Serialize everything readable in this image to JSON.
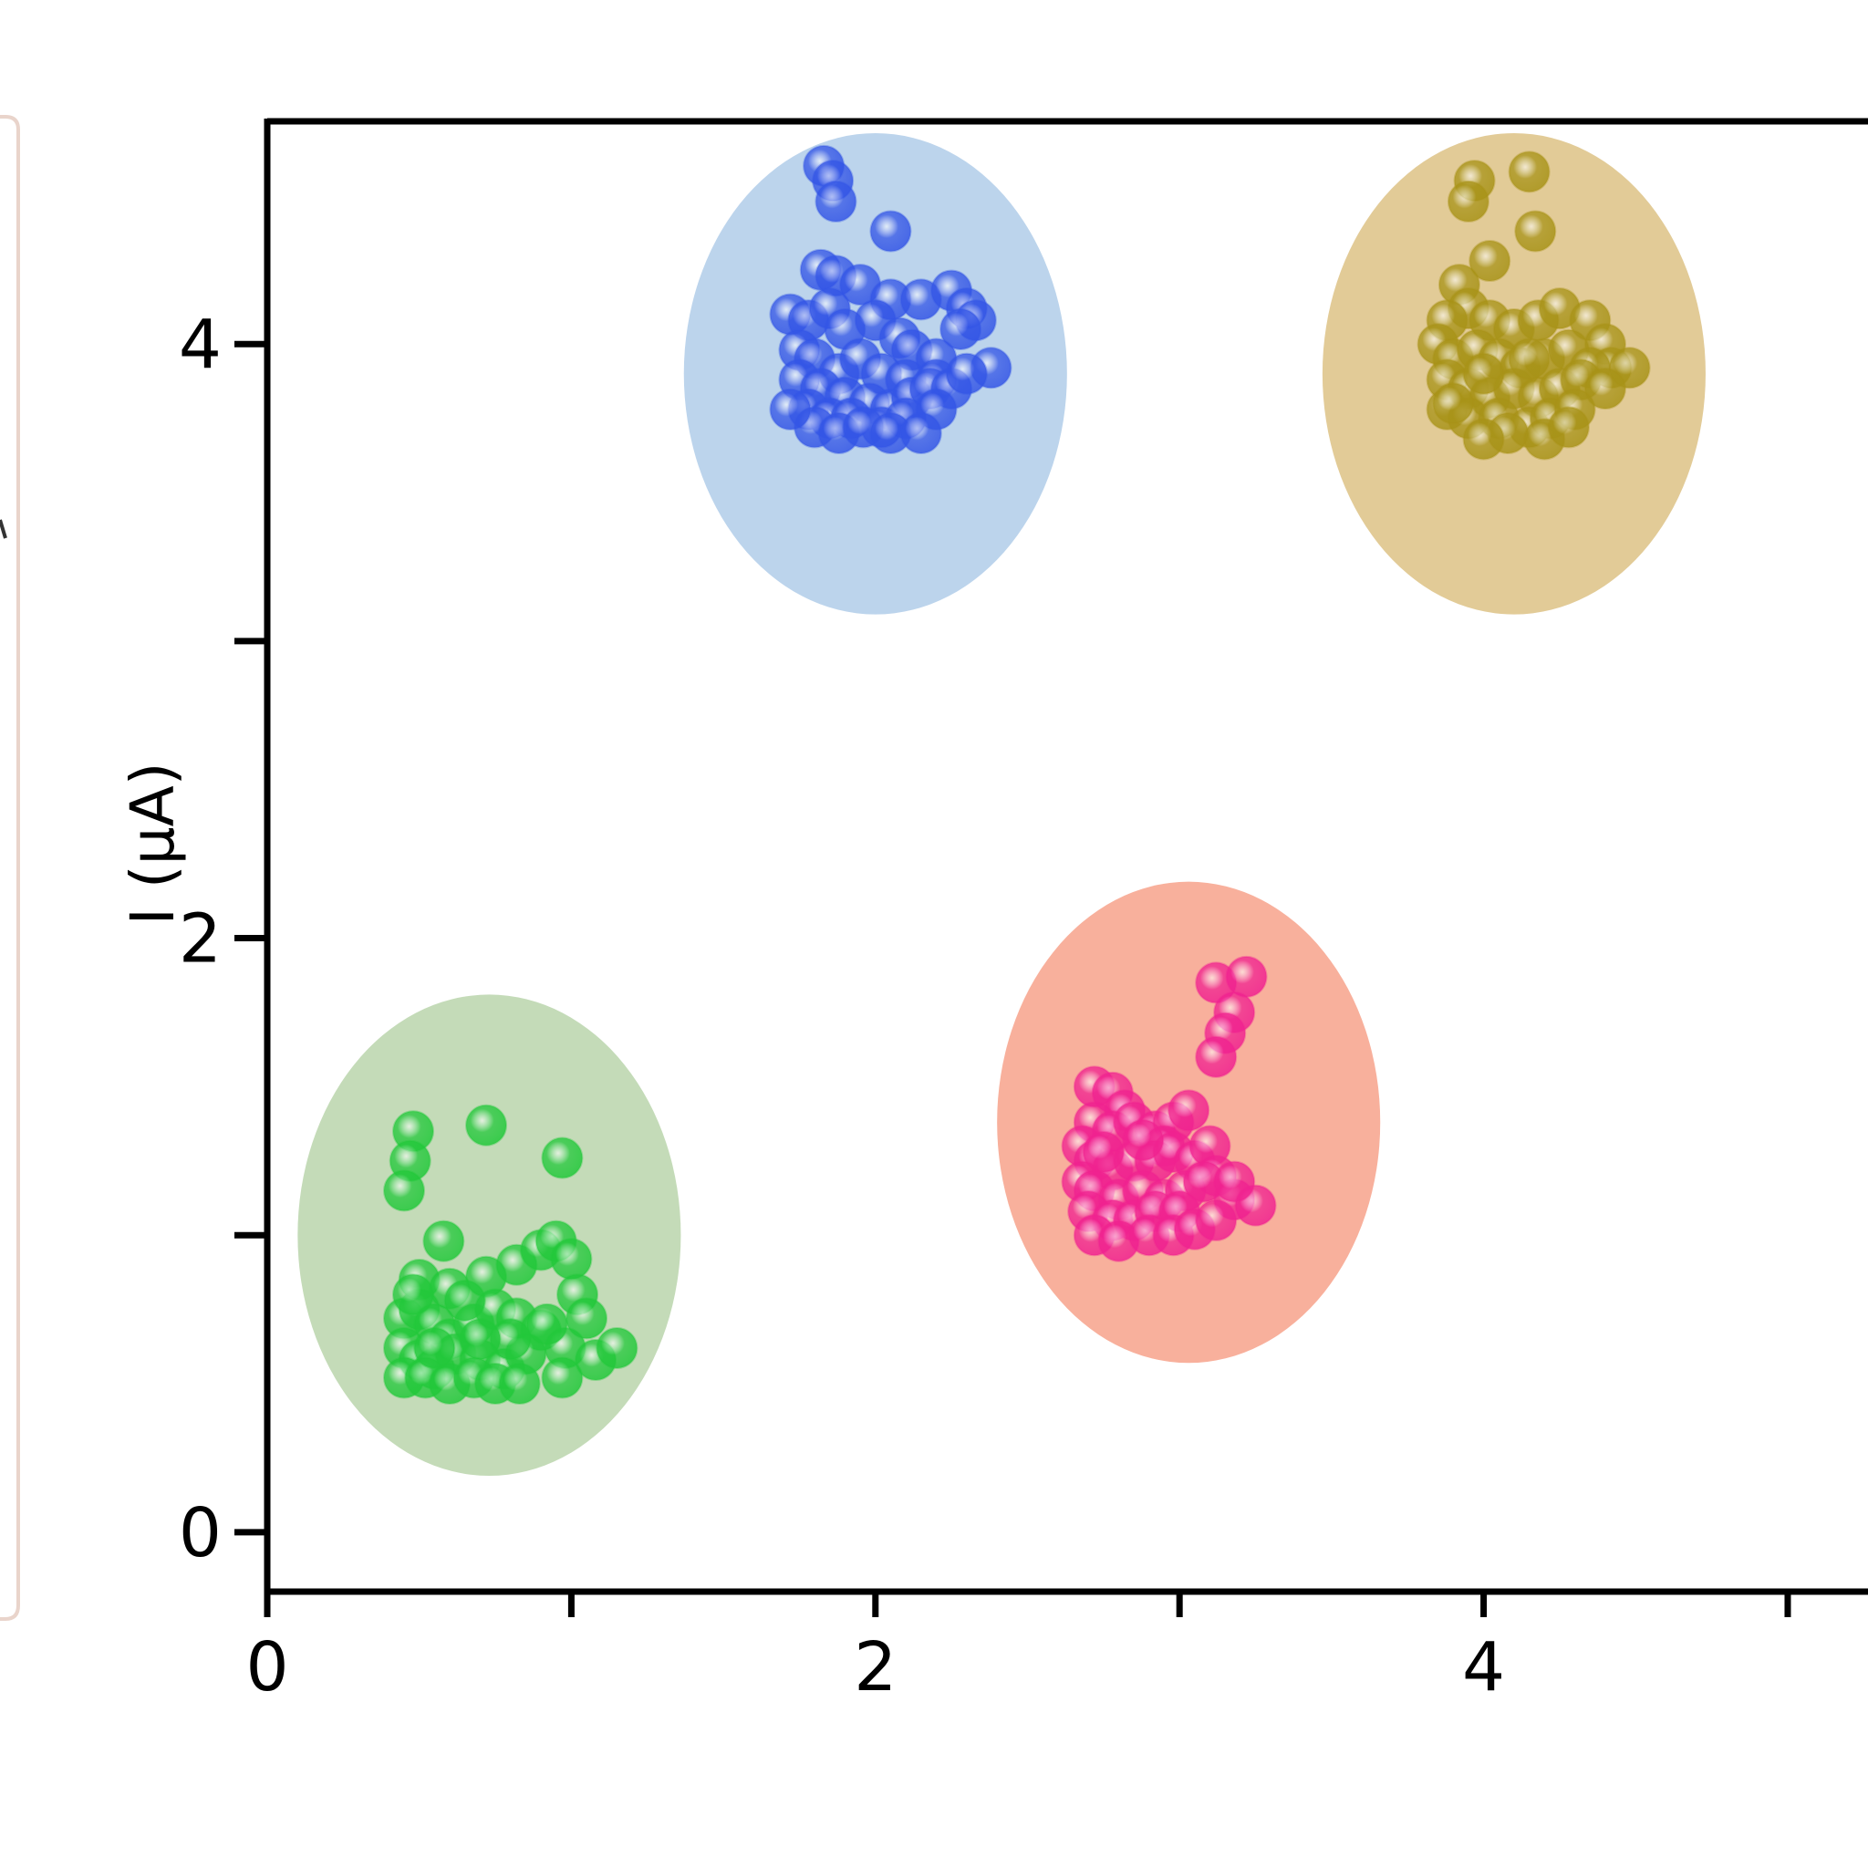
{
  "chart_data": {
    "type": "scatter",
    "title": "",
    "xlabel": "",
    "ylabel": "I (μA)",
    "xlim": [
      0,
      5.3
    ],
    "ylim": [
      -0.2,
      4.75
    ],
    "x_ticks": [
      0,
      1,
      2,
      3,
      4,
      5
    ],
    "x_tick_labels": [
      "0",
      "",
      "2",
      "",
      "4",
      ""
    ],
    "y_ticks": [
      0,
      1,
      2,
      3,
      4
    ],
    "y_tick_labels": [
      "0",
      "",
      "2",
      "",
      "4"
    ],
    "grid": false,
    "legend": "none",
    "clusters": [
      {
        "color": "#22c83a",
        "fill": "#c4dbb8",
        "ellipse": {
          "cx": 0.73,
          "cy": 1.0,
          "rx": 0.63,
          "ry": 0.81
        },
        "points": [
          [
            0.48,
            1.35
          ],
          [
            0.47,
            1.25
          ],
          [
            0.45,
            1.15
          ],
          [
            0.72,
            1.37
          ],
          [
            0.97,
            1.26
          ],
          [
            0.58,
            0.98
          ],
          [
            0.5,
            0.85
          ],
          [
            0.6,
            0.82
          ],
          [
            0.72,
            0.86
          ],
          [
            0.82,
            0.9
          ],
          [
            0.9,
            0.95
          ],
          [
            0.95,
            0.98
          ],
          [
            1.0,
            0.92
          ],
          [
            1.02,
            0.8
          ],
          [
            1.05,
            0.72
          ],
          [
            0.45,
            0.72
          ],
          [
            0.5,
            0.75
          ],
          [
            0.55,
            0.7
          ],
          [
            0.6,
            0.65
          ],
          [
            0.68,
            0.7
          ],
          [
            0.75,
            0.75
          ],
          [
            0.82,
            0.72
          ],
          [
            0.9,
            0.68
          ],
          [
            0.98,
            0.62
          ],
          [
            1.08,
            0.58
          ],
          [
            1.15,
            0.62
          ],
          [
            0.45,
            0.62
          ],
          [
            0.5,
            0.58
          ],
          [
            0.55,
            0.55
          ],
          [
            0.62,
            0.6
          ],
          [
            0.7,
            0.58
          ],
          [
            0.78,
            0.55
          ],
          [
            0.85,
            0.6
          ],
          [
            0.45,
            0.52
          ],
          [
            0.52,
            0.52
          ],
          [
            0.6,
            0.5
          ],
          [
            0.68,
            0.52
          ],
          [
            0.75,
            0.5
          ],
          [
            0.83,
            0.5
          ],
          [
            0.92,
            0.7
          ],
          [
            0.97,
            0.52
          ],
          [
            0.48,
            0.8
          ],
          [
            0.65,
            0.78
          ],
          [
            0.8,
            0.65
          ],
          [
            0.7,
            0.65
          ],
          [
            0.55,
            0.62
          ]
        ]
      },
      {
        "color": "#3355e6",
        "fill": "#bcd4ec",
        "ellipse": {
          "cx": 2.0,
          "cy": 3.9,
          "rx": 0.63,
          "ry": 0.81
        },
        "points": [
          [
            1.83,
            4.6
          ],
          [
            1.86,
            4.55
          ],
          [
            1.87,
            4.48
          ],
          [
            2.05,
            4.38
          ],
          [
            1.82,
            4.25
          ],
          [
            1.87,
            4.23
          ],
          [
            1.95,
            4.2
          ],
          [
            2.05,
            4.15
          ],
          [
            2.15,
            4.15
          ],
          [
            2.25,
            4.18
          ],
          [
            2.3,
            4.12
          ],
          [
            2.33,
            4.08
          ],
          [
            2.28,
            4.05
          ],
          [
            1.72,
            4.1
          ],
          [
            1.78,
            4.08
          ],
          [
            1.85,
            4.12
          ],
          [
            1.9,
            4.05
          ],
          [
            2.0,
            4.08
          ],
          [
            2.08,
            4.02
          ],
          [
            2.12,
            3.98
          ],
          [
            2.2,
            3.95
          ],
          [
            1.75,
            3.98
          ],
          [
            1.8,
            3.95
          ],
          [
            1.88,
            3.9
          ],
          [
            1.95,
            3.95
          ],
          [
            2.02,
            3.9
          ],
          [
            2.1,
            3.88
          ],
          [
            2.2,
            3.88
          ],
          [
            2.38,
            3.92
          ],
          [
            1.75,
            3.88
          ],
          [
            1.82,
            3.85
          ],
          [
            1.9,
            3.82
          ],
          [
            1.98,
            3.8
          ],
          [
            2.05,
            3.78
          ],
          [
            2.12,
            3.82
          ],
          [
            2.18,
            3.85
          ],
          [
            2.25,
            3.85
          ],
          [
            2.3,
            3.9
          ],
          [
            1.78,
            3.78
          ],
          [
            1.85,
            3.75
          ],
          [
            1.92,
            3.75
          ],
          [
            2.02,
            3.72
          ],
          [
            2.1,
            3.75
          ],
          [
            2.2,
            3.78
          ],
          [
            1.8,
            3.72
          ],
          [
            1.88,
            3.7
          ],
          [
            1.96,
            3.72
          ],
          [
            2.05,
            3.7
          ],
          [
            1.72,
            3.78
          ],
          [
            2.15,
            3.7
          ]
        ]
      },
      {
        "color": "#a89318",
        "fill": "#e2cb97",
        "ellipse": {
          "cx": 4.1,
          "cy": 3.9,
          "rx": 0.63,
          "ry": 0.81
        },
        "points": [
          [
            3.97,
            4.55
          ],
          [
            4.15,
            4.58
          ],
          [
            3.95,
            4.48
          ],
          [
            4.17,
            4.38
          ],
          [
            4.02,
            4.28
          ],
          [
            3.92,
            4.2
          ],
          [
            3.95,
            4.12
          ],
          [
            4.02,
            4.08
          ],
          [
            4.1,
            4.05
          ],
          [
            4.18,
            4.08
          ],
          [
            4.25,
            4.12
          ],
          [
            4.35,
            4.08
          ],
          [
            4.4,
            4.0
          ],
          [
            4.42,
            3.92
          ],
          [
            4.48,
            3.92
          ],
          [
            3.88,
            4.08
          ],
          [
            3.85,
            4.0
          ],
          [
            3.9,
            3.95
          ],
          [
            3.98,
            3.98
          ],
          [
            4.05,
            3.95
          ],
          [
            4.12,
            3.92
          ],
          [
            4.2,
            3.95
          ],
          [
            4.28,
            3.98
          ],
          [
            4.35,
            3.92
          ],
          [
            3.88,
            3.88
          ],
          [
            3.95,
            3.85
          ],
          [
            4.02,
            3.82
          ],
          [
            4.1,
            3.85
          ],
          [
            4.18,
            3.82
          ],
          [
            4.25,
            3.85
          ],
          [
            4.32,
            3.88
          ],
          [
            4.4,
            3.85
          ],
          [
            3.88,
            3.78
          ],
          [
            3.95,
            3.75
          ],
          [
            4.05,
            3.75
          ],
          [
            4.15,
            3.72
          ],
          [
            4.22,
            3.75
          ],
          [
            4.3,
            3.78
          ],
          [
            3.9,
            3.8
          ],
          [
            4.0,
            3.9
          ],
          [
            4.08,
            3.7
          ],
          [
            4.2,
            3.68
          ],
          [
            4.28,
            3.72
          ],
          [
            4.0,
            3.68
          ],
          [
            4.15,
            3.95
          ]
        ]
      },
      {
        "color": "#f02290",
        "fill": "#f8b09c",
        "ellipse": {
          "cx": 3.03,
          "cy": 1.38,
          "rx": 0.63,
          "ry": 0.81
        },
        "points": [
          [
            3.12,
            1.85
          ],
          [
            3.22,
            1.87
          ],
          [
            3.18,
            1.75
          ],
          [
            3.15,
            1.68
          ],
          [
            3.12,
            1.6
          ],
          [
            2.72,
            1.5
          ],
          [
            2.78,
            1.48
          ],
          [
            2.82,
            1.42
          ],
          [
            2.72,
            1.38
          ],
          [
            2.78,
            1.35
          ],
          [
            2.85,
            1.38
          ],
          [
            2.92,
            1.35
          ],
          [
            2.98,
            1.38
          ],
          [
            3.03,
            1.42
          ],
          [
            2.95,
            1.3
          ],
          [
            2.68,
            1.3
          ],
          [
            2.72,
            1.25
          ],
          [
            2.78,
            1.22
          ],
          [
            2.85,
            1.25
          ],
          [
            2.92,
            1.25
          ],
          [
            2.98,
            1.28
          ],
          [
            3.05,
            1.25
          ],
          [
            3.1,
            1.3
          ],
          [
            3.12,
            1.2
          ],
          [
            2.68,
            1.18
          ],
          [
            2.72,
            1.15
          ],
          [
            2.8,
            1.12
          ],
          [
            2.88,
            1.15
          ],
          [
            2.95,
            1.12
          ],
          [
            3.02,
            1.15
          ],
          [
            3.08,
            1.18
          ],
          [
            3.18,
            1.12
          ],
          [
            3.25,
            1.1
          ],
          [
            2.7,
            1.08
          ],
          [
            2.78,
            1.05
          ],
          [
            2.85,
            1.05
          ],
          [
            2.92,
            1.08
          ],
          [
            3.0,
            1.08
          ],
          [
            2.72,
            1.0
          ],
          [
            2.8,
            0.98
          ],
          [
            2.9,
            1.0
          ],
          [
            2.98,
            1.0
          ],
          [
            3.05,
            1.02
          ],
          [
            3.12,
            1.05
          ],
          [
            3.18,
            1.18
          ],
          [
            2.75,
            1.28
          ],
          [
            2.88,
            1.32
          ]
        ]
      }
    ]
  }
}
